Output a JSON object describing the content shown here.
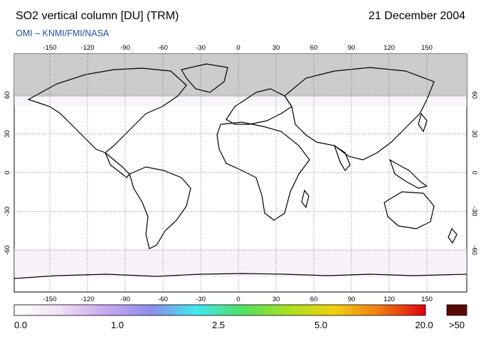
{
  "header": {
    "title": "SO2 vertical column [DU] (TRM)",
    "date": "21 December 2004",
    "credit": "OMI  –  KNMI/FMI/NASA"
  },
  "map": {
    "lon_ticks": [
      "-150",
      "-120",
      "-90",
      "-60",
      "-30",
      "0",
      "30",
      "60",
      "90",
      "120",
      "150"
    ],
    "lat_ticks": [
      "60",
      "30",
      "0",
      "-30",
      "-60"
    ],
    "no_data_color": "#cccccc",
    "grid": true
  },
  "colorbar": {
    "labels": [
      "0.0",
      "1.0",
      "2.5",
      "5.0",
      "20.0",
      ">50"
    ],
    "colors": [
      "#ffffff",
      "#f2dff5",
      "#c8a8f0",
      "#8d8de8",
      "#3ee8f0",
      "#52e060",
      "#a8e020",
      "#f0d010",
      "#f07a10",
      "#e00010"
    ],
    "overflow_color": "#5a0a05"
  }
}
